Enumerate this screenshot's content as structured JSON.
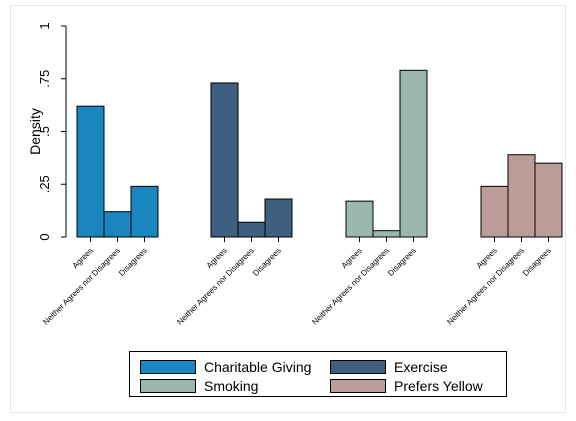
{
  "chart_data": {
    "type": "bar",
    "ylabel": "Density",
    "ylim": [
      0,
      1
    ],
    "yticks": [
      {
        "value": 0,
        "label": "0"
      },
      {
        "value": 0.25,
        "label": ".25"
      },
      {
        "value": 0.5,
        "label": ".5"
      },
      {
        "value": 0.75,
        "label": ".75"
      },
      {
        "value": 1,
        "label": "1"
      }
    ],
    "categories": [
      "Agrees",
      "Neither Agrees nor Disagrees",
      "Disagrees"
    ],
    "series": [
      {
        "name": "Charitable Giving",
        "color": "#1a86c0",
        "values": [
          0.62,
          0.12,
          0.24
        ]
      },
      {
        "name": "Exercise",
        "color": "#3e5f7f",
        "values": [
          0.73,
          0.07,
          0.18
        ]
      },
      {
        "name": "Smoking",
        "color": "#9ab8b0",
        "values": [
          0.17,
          0.03,
          0.79
        ]
      },
      {
        "name": "Prefers Yellow",
        "color": "#bc9c98",
        "values": [
          0.24,
          0.39,
          0.35
        ]
      }
    ],
    "grid": false,
    "legend_position": "bottom"
  }
}
